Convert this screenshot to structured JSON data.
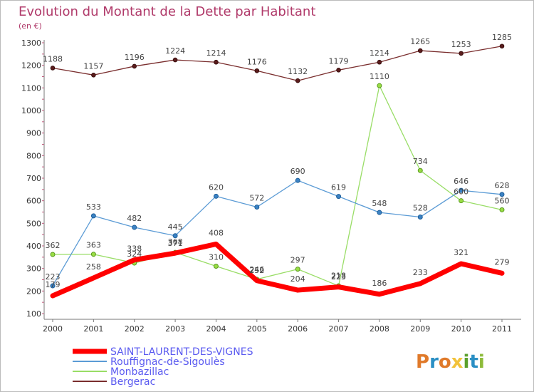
{
  "chart_data": {
    "type": "line",
    "title": "Evolution du Montant de la Dette par Habitant",
    "subtitle": "(en €)",
    "xlabel": "",
    "ylabel": "",
    "ylim": [
      100,
      1300
    ],
    "yticks": [
      100,
      200,
      300,
      400,
      500,
      600,
      700,
      800,
      900,
      1000,
      1100,
      1200,
      1300
    ],
    "categories": [
      "2000",
      "2001",
      "2002",
      "2003",
      "2004",
      "2005",
      "2006",
      "2007",
      "2008",
      "2009",
      "2010",
      "2011"
    ],
    "grid": false,
    "legend_position": "bottom-left",
    "series": [
      {
        "name": "SAINT-LAURENT-DES-VIGNES",
        "color": "#ff0000",
        "values": [
          179,
          258,
          338,
          368,
          408,
          246,
          204,
          218,
          186,
          233,
          321,
          279
        ]
      },
      {
        "name": "Rouffignac-de-Sigoulès",
        "color": "#5b9bd5",
        "values": [
          223,
          533,
          482,
          445,
          620,
          572,
          690,
          619,
          548,
          528,
          646,
          628
        ]
      },
      {
        "name": "Monbazillac",
        "color": "#99dd66",
        "values": [
          362,
          363,
          324,
          371,
          310,
          252,
          297,
          223,
          1110,
          734,
          600,
          560
        ]
      },
      {
        "name": "Bergerac",
        "color": "#7a2e2e",
        "values": [
          1188,
          1157,
          1196,
          1224,
          1214,
          1176,
          1132,
          1179,
          1214,
          1265,
          1253,
          1285
        ]
      }
    ]
  },
  "logo": {
    "text": "Proxiti"
  }
}
